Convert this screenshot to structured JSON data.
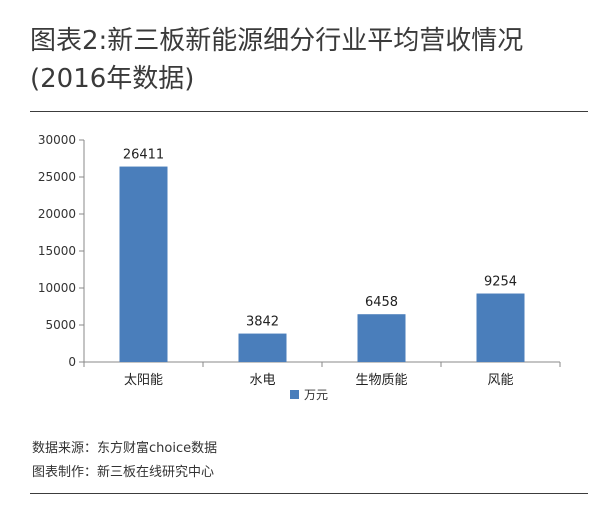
{
  "title_line1": "图表2:新三板新能源细分行业平均营收情况",
  "title_line2": "(2016年数据)",
  "footnotes": {
    "source": "数据来源：东方财富choice数据",
    "maker": "图表制作：新三板在线研究中心"
  },
  "colors": {
    "bar": "#4a7ebb",
    "axis": "#888888",
    "rule": "#3c3c3c"
  },
  "chart_data": {
    "type": "bar",
    "categories": [
      "太阳能",
      "水电",
      "生物质能",
      "风能"
    ],
    "series": [
      {
        "name": "万元",
        "values": [
          26411,
          3842,
          6458,
          9254
        ]
      }
    ],
    "data_labels": [
      "26411",
      "3842",
      "6458",
      "9254"
    ],
    "yticks": [
      0,
      5000,
      10000,
      15000,
      20000,
      25000,
      30000
    ],
    "ylim": [
      0,
      30000
    ],
    "grid": false,
    "legend": "bottom"
  }
}
